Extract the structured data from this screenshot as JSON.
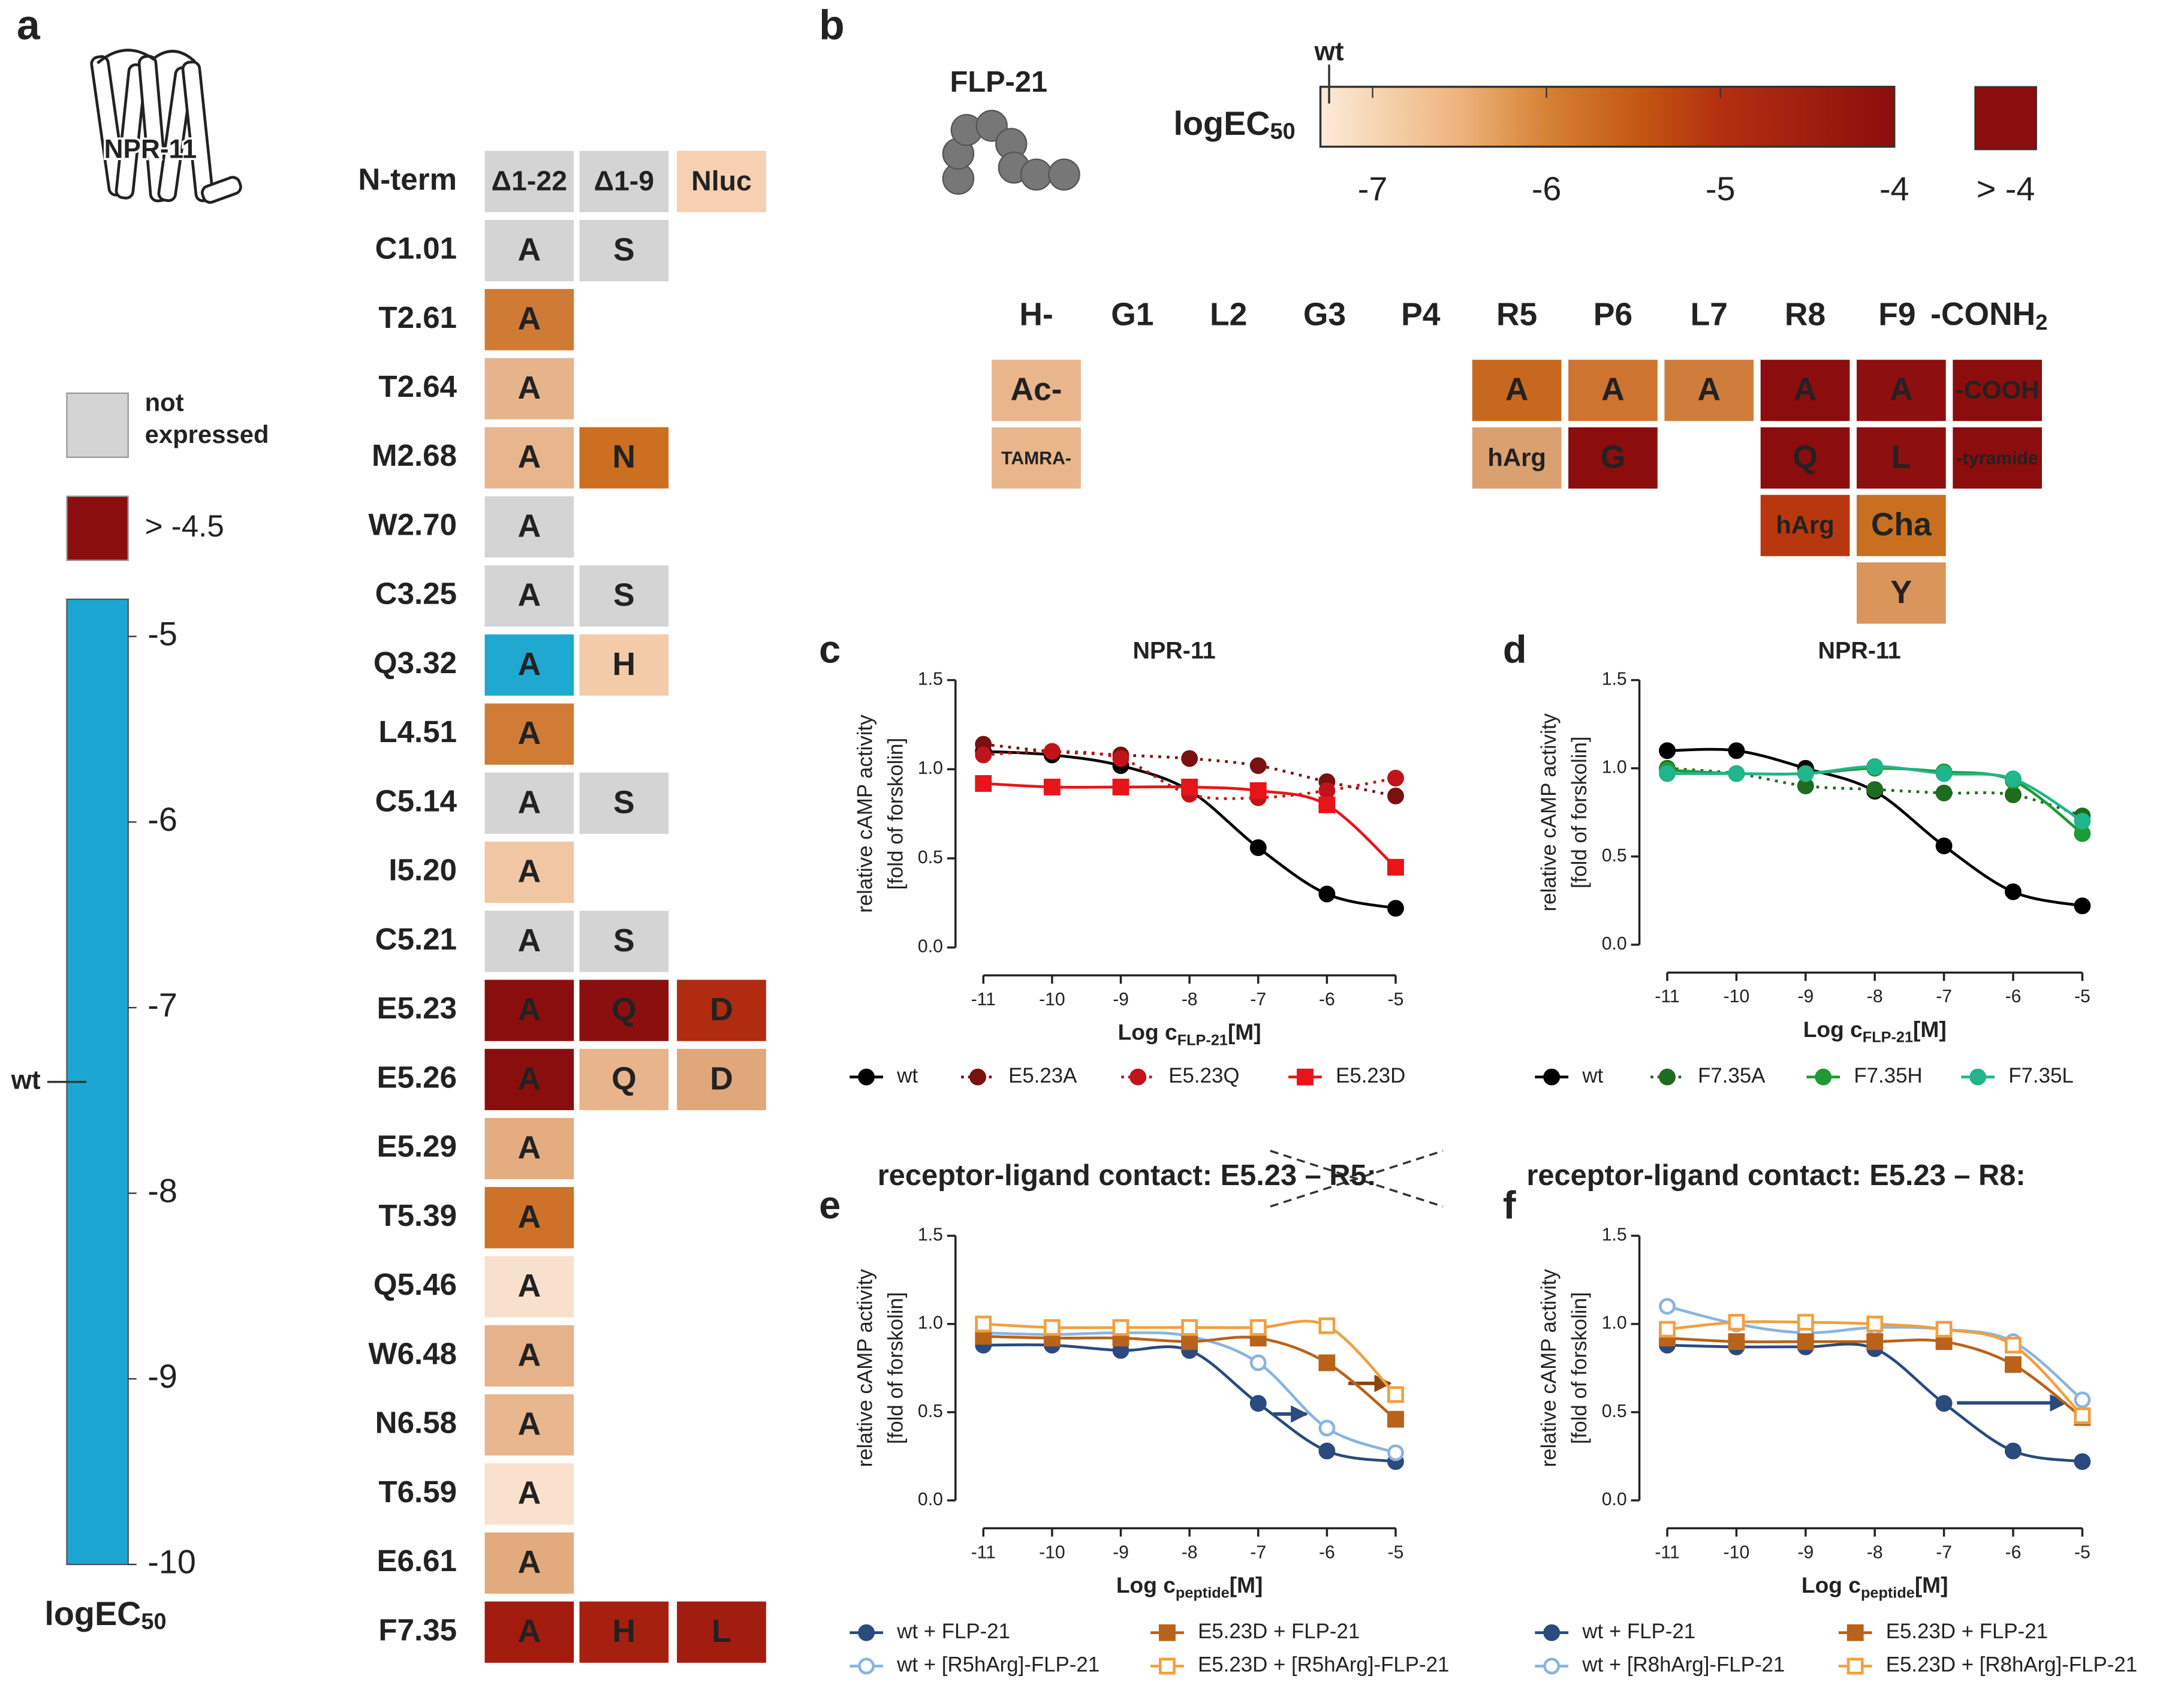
{
  "panel_a": {
    "label": "a",
    "receptor": "NPR-11",
    "rows": [
      {
        "name": "N-term",
        "cells": [
          {
            "text": "Δ1-22",
            "color": "#d4d4d4"
          },
          {
            "text": "Δ1-9",
            "color": "#d4d4d4"
          },
          {
            "text": "Nluc",
            "color": "#f6d0b0"
          }
        ]
      },
      {
        "name": "C1.01",
        "cells": [
          {
            "text": "A",
            "color": "#d4d4d4"
          },
          {
            "text": "S",
            "color": "#d4d4d4"
          }
        ]
      },
      {
        "name": "T2.61",
        "cells": [
          {
            "text": "A",
            "color": "#cf7b35"
          }
        ]
      },
      {
        "name": "T2.64",
        "cells": [
          {
            "text": "A",
            "color": "#e6b48a"
          }
        ]
      },
      {
        "name": "M2.68",
        "cells": [
          {
            "text": "A",
            "color": "#e8b68c"
          },
          {
            "text": "N",
            "color": "#cd6f20"
          }
        ]
      },
      {
        "name": "W2.70",
        "cells": [
          {
            "text": "A",
            "color": "#d4d4d4"
          }
        ]
      },
      {
        "name": "C3.25",
        "cells": [
          {
            "text": "A",
            "color": "#d4d4d4"
          },
          {
            "text": "S",
            "color": "#d4d4d4"
          }
        ]
      },
      {
        "name": "Q3.32",
        "cells": [
          {
            "text": "A",
            "color": "#1fa8d0"
          },
          {
            "text": "H",
            "color": "#f4cba8"
          }
        ]
      },
      {
        "name": "L4.51",
        "cells": [
          {
            "text": "A",
            "color": "#d07c35"
          }
        ]
      },
      {
        "name": "C5.14",
        "cells": [
          {
            "text": "A",
            "color": "#d4d4d4"
          },
          {
            "text": "S",
            "color": "#d4d4d4"
          }
        ]
      },
      {
        "name": "I5.20",
        "cells": [
          {
            "text": "A",
            "color": "#f0c6a3"
          }
        ]
      },
      {
        "name": "C5.21",
        "cells": [
          {
            "text": "A",
            "color": "#d4d4d4"
          },
          {
            "text": "S",
            "color": "#d4d4d4"
          }
        ]
      },
      {
        "name": "E5.23",
        "cells": [
          {
            "text": "A",
            "color": "#8b0e0e",
            "text_color": "#ffffff"
          },
          {
            "text": "Q",
            "color": "#8c0f0f",
            "text_color": "#ffffff"
          },
          {
            "text": "D",
            "color": "#b02b10",
            "text_color": "#ffffff"
          }
        ]
      },
      {
        "name": "E5.26",
        "cells": [
          {
            "text": "A",
            "color": "#8b0e0e",
            "text_color": "#ffffff"
          },
          {
            "text": "Q",
            "color": "#e8b48c"
          },
          {
            "text": "D",
            "color": "#e0a77a"
          }
        ]
      },
      {
        "name": "E5.29",
        "cells": [
          {
            "text": "A",
            "color": "#e3ad80"
          }
        ]
      },
      {
        "name": "T5.39",
        "cells": [
          {
            "text": "A",
            "color": "#cd7228"
          }
        ]
      },
      {
        "name": "Q5.46",
        "cells": [
          {
            "text": "A",
            "color": "#f8e1cc"
          }
        ]
      },
      {
        "name": "W6.48",
        "cells": [
          {
            "text": "A",
            "color": "#e6b289"
          }
        ]
      },
      {
        "name": "N6.58",
        "cells": [
          {
            "text": "A",
            "color": "#e8b78e"
          }
        ]
      },
      {
        "name": "T6.59",
        "cells": [
          {
            "text": "A",
            "color": "#f9e2cd"
          }
        ]
      },
      {
        "name": "E6.61",
        "cells": [
          {
            "text": "A",
            "color": "#e2ab7e"
          }
        ]
      },
      {
        "name": "F7.35",
        "cells": [
          {
            "text": "A",
            "color": "#a31b0f",
            "text_color": "#ffffff"
          },
          {
            "text": "H",
            "color": "#a7200f",
            "text_color": "#ffffff"
          },
          {
            "text": "L",
            "color": "#a31c10",
            "text_color": "#ffffff"
          }
        ]
      }
    ],
    "legend": [
      {
        "lines": [
          "not",
          "expressed"
        ],
        "color": "#d4d4d4"
      },
      {
        "lines": [
          "> -4.5"
        ],
        "color": "#8b0e0e"
      }
    ],
    "colorbar": {
      "title": "logEC",
      "title_sub": "50",
      "lim": [
        -10,
        -4.8
      ],
      "ticks": [
        -5,
        -6,
        -7,
        -8,
        -9,
        -10
      ],
      "wt": {
        "label": "wt",
        "value": -7.4
      },
      "colors": [
        {
          "value": -10,
          "color": "#1ba7d2"
        },
        {
          "value": -9,
          "color": "#7ec8d8"
        },
        {
          "value": -8,
          "color": "#eef0ea"
        },
        {
          "value": -7.4,
          "color": "#f7e4d2"
        },
        {
          "value": -7,
          "color": "#ebbd93"
        },
        {
          "value": -6,
          "color": "#c8731f"
        },
        {
          "value": -5,
          "color": "#b32410"
        },
        {
          "value": -4.8,
          "color": "#a81818"
        }
      ]
    }
  },
  "panel_b": {
    "label": "b",
    "peptide": "FLP-21",
    "colorbar": {
      "title": "logEC",
      "title_sub": "50",
      "lim": [
        -7.3,
        -4
      ],
      "ticks": [
        -7,
        -6,
        -5,
        -4
      ],
      "wt": {
        "label": "wt",
        "value": -7.25
      },
      "over": {
        "label": "> -4",
        "color": "#8b0d0d"
      },
      "colors": [
        {
          "value": -7.3,
          "color": "#fcebd8"
        },
        {
          "value": -6.5,
          "color": "#edb47c"
        },
        {
          "value": -6,
          "color": "#d58235"
        },
        {
          "value": -5.5,
          "color": "#c55a14"
        },
        {
          "value": -5,
          "color": "#b33010"
        },
        {
          "value": -4,
          "color": "#8b0d0d"
        }
      ]
    },
    "headers": [
      "H-",
      "G1",
      "L2",
      "G3",
      "P4",
      "R5",
      "P6",
      "L7",
      "R8",
      "F9",
      {
        "text": "-CONH",
        "sub": "2"
      }
    ],
    "rows": [
      [
        {
          "text": "Ac-",
          "color": "#e9b68b"
        },
        null,
        null,
        null,
        null,
        {
          "text": "A",
          "color": "#c8681e"
        },
        {
          "text": "A",
          "color": "#cc7430"
        },
        {
          "text": "A",
          "color": "#cf7d3b"
        },
        {
          "text": "A",
          "color": "#8b0d0d",
          "text_color": "#ffffff"
        },
        {
          "text": "A",
          "color": "#8e0f0f",
          "text_color": "#ffffff"
        },
        {
          "text": "-COOH",
          "color": "#8b0d0d",
          "text_color": "#ffffff"
        }
      ],
      [
        {
          "text": "TAMRA-",
          "color": "#e9b68b"
        },
        null,
        null,
        null,
        null,
        {
          "text": "hArg",
          "color": "#dba070"
        },
        {
          "text": "G",
          "color": "#8b0d0d",
          "text_color": "#ffffff"
        },
        null,
        {
          "text": "Q",
          "color": "#8b0d0d",
          "text_color": "#ffffff"
        },
        {
          "text": "L",
          "color": "#8e0f0f",
          "text_color": "#ffffff"
        },
        {
          "text": "-tyramide",
          "color": "#8b0d0d",
          "text_color": "#ffffff"
        }
      ],
      [
        null,
        null,
        null,
        null,
        null,
        null,
        null,
        null,
        {
          "text": "hArg",
          "color": "#b8370f",
          "text_color": "#ffffff"
        },
        {
          "text": "Cha",
          "color": "#c8701f"
        },
        null
      ],
      [
        null,
        null,
        null,
        null,
        null,
        null,
        null,
        null,
        null,
        {
          "text": "Y",
          "color": "#d9955c"
        },
        null
      ]
    ]
  },
  "chart_data": [
    {
      "type": "line",
      "label": "c",
      "title": "NPR-11",
      "ylabel": [
        "relative cAMP activity",
        "[fold of forskolin]"
      ],
      "xlabel": "Log c",
      "xlabel_sub": "FLP-21",
      "xlabel_unit": "[M]",
      "x": [
        -11,
        -10,
        -9,
        -8,
        -7,
        -6,
        -5
      ],
      "xlim": [
        -11,
        -5
      ],
      "xticks": [
        -11,
        -10,
        -9,
        -8,
        -7,
        -6,
        -5
      ],
      "ylim": [
        0,
        1.5
      ],
      "yticks": [
        {
          "value": 0,
          "label": "0.0"
        },
        {
          "value": 0.5,
          "label": "0.5"
        },
        {
          "value": 1,
          "label": "1.0"
        },
        {
          "value": 1.5,
          "label": "1.5"
        }
      ],
      "series": [
        {
          "name": "wt",
          "color": "#000000",
          "marker": "circle",
          "dash": false,
          "values": [
            1.1,
            1.08,
            1.02,
            0.88,
            0.56,
            0.3,
            0.22
          ]
        },
        {
          "name": "E5.23A",
          "color": "#7a1010",
          "marker": "circle",
          "dash": true,
          "values": [
            1.14,
            1.1,
            1.08,
            1.06,
            1.02,
            0.93,
            0.85
          ]
        },
        {
          "name": "E5.23Q",
          "color": "#c0141a",
          "marker": "circle",
          "dash": true,
          "values": [
            1.08,
            1.1,
            1.06,
            0.86,
            0.84,
            0.88,
            0.95
          ]
        },
        {
          "name": "E5.23D",
          "color": "#e8141a",
          "marker": "square",
          "dash": false,
          "values": [
            0.92,
            0.9,
            0.9,
            0.9,
            0.88,
            0.8,
            0.45
          ]
        }
      ]
    },
    {
      "type": "line",
      "label": "d",
      "title": "NPR-11",
      "ylabel": [
        "relative cAMP activity",
        "[fold of forskolin]"
      ],
      "xlabel": "Log c",
      "xlabel_sub": "FLP-21",
      "xlabel_unit": "[M]",
      "x": [
        -11,
        -10,
        -9,
        -8,
        -7,
        -6,
        -5
      ],
      "xlim": [
        -11,
        -5
      ],
      "xticks": [
        -11,
        -10,
        -9,
        -8,
        -7,
        -6,
        -5
      ],
      "ylim": [
        0,
        1.5
      ],
      "yticks": [
        {
          "value": 0,
          "label": "0.0"
        },
        {
          "value": 0.5,
          "label": "0.5"
        },
        {
          "value": 1,
          "label": "1.0"
        },
        {
          "value": 1.5,
          "label": "1.5"
        }
      ],
      "series": [
        {
          "name": "wt",
          "color": "#000000",
          "marker": "circle",
          "dash": false,
          "values": [
            1.1,
            1.1,
            1.0,
            0.87,
            0.56,
            0.3,
            0.22
          ]
        },
        {
          "name": "F7.35A",
          "color": "#1f6b1f",
          "marker": "circle",
          "dash": true,
          "values": [
            1.0,
            0.97,
            0.9,
            0.88,
            0.86,
            0.85,
            0.73
          ]
        },
        {
          "name": "F7.35H",
          "color": "#1f9a35",
          "marker": "circle",
          "dash": false,
          "values": [
            0.99,
            0.97,
            0.97,
            1.0,
            0.98,
            0.93,
            0.63
          ]
        },
        {
          "name": "F7.35L",
          "color": "#20b58a",
          "marker": "circle",
          "dash": false,
          "values": [
            0.97,
            0.97,
            0.97,
            1.01,
            0.97,
            0.94,
            0.7
          ]
        }
      ]
    },
    {
      "type": "line",
      "label": "e",
      "title": "receptor-ligand  contact: E5.23 – R5:",
      "ylabel": [
        "relative cAMP activity",
        "[fold of forskolin]"
      ],
      "xlabel": "Log c",
      "xlabel_sub": "peptide",
      "xlabel_unit": "[M]",
      "x": [
        -11,
        -10,
        -9,
        -8,
        -7,
        -6,
        -5
      ],
      "xlim": [
        -11,
        -5
      ],
      "xticks": [
        -11,
        -10,
        -9,
        -8,
        -7,
        -6,
        -5
      ],
      "ylim": [
        0,
        1.5
      ],
      "yticks": [
        {
          "value": 0,
          "label": "0.0"
        },
        {
          "value": 0.5,
          "label": "0.5"
        },
        {
          "value": 1,
          "label": "1.0"
        },
        {
          "value": 1.5,
          "label": "1.5"
        }
      ],
      "series": [
        {
          "name": "wt + FLP-21",
          "color": "#2b4a7d",
          "marker": "circle",
          "dash": false,
          "values": [
            0.88,
            0.88,
            0.85,
            0.85,
            0.55,
            0.28,
            0.22
          ]
        },
        {
          "name": "wt + [R5hArg]-FLP-21",
          "color": "#8ab4e0",
          "marker": "circle-open",
          "dash": false,
          "values": [
            0.95,
            0.94,
            0.95,
            0.93,
            0.78,
            0.41,
            0.27
          ]
        },
        {
          "name": "E5.23D + FLP-21",
          "color": "#b8621a",
          "marker": "square",
          "dash": false,
          "values": [
            0.93,
            0.92,
            0.92,
            0.9,
            0.92,
            0.78,
            0.46
          ]
        },
        {
          "name": "E5.23D + [R5hArg]-FLP-21",
          "color": "#f0a040",
          "marker": "square-open",
          "dash": false,
          "values": [
            1.0,
            0.98,
            0.98,
            0.98,
            0.98,
            0.99,
            0.6
          ]
        }
      ]
    },
    {
      "type": "line",
      "label": "f",
      "title": "receptor-ligand  contact: E5.23 – R8:",
      "ylabel": [
        "relative cAMP activity",
        "[fold of forskolin]"
      ],
      "xlabel": "Log c",
      "xlabel_sub": "peptide",
      "xlabel_unit": "[M]",
      "x": [
        -11,
        -10,
        -9,
        -8,
        -7,
        -6,
        -5
      ],
      "xlim": [
        -11,
        -5
      ],
      "xticks": [
        -11,
        -10,
        -9,
        -8,
        -7,
        -6,
        -5
      ],
      "ylim": [
        0,
        1.5
      ],
      "yticks": [
        {
          "value": 0,
          "label": "0.0"
        },
        {
          "value": 0.5,
          "label": "0.5"
        },
        {
          "value": 1,
          "label": "1.0"
        },
        {
          "value": 1.5,
          "label": "1.5"
        }
      ],
      "series": [
        {
          "name": "wt + FLP-21",
          "color": "#2b4a7d",
          "marker": "circle",
          "dash": false,
          "values": [
            0.88,
            0.87,
            0.87,
            0.86,
            0.55,
            0.28,
            0.22
          ]
        },
        {
          "name": "wt + [R8hArg]-FLP-21",
          "color": "#8ab4e0",
          "marker": "circle-open",
          "dash": false,
          "values": [
            1.1,
            1.0,
            0.95,
            0.98,
            0.97,
            0.9,
            0.57
          ]
        },
        {
          "name": "E5.23D + FLP-21",
          "color": "#b8621a",
          "marker": "square",
          "dash": false,
          "values": [
            0.92,
            0.9,
            0.9,
            0.9,
            0.9,
            0.77,
            0.47
          ]
        },
        {
          "name": "E5.23D + [R8hArg]-FLP-21",
          "color": "#f0a040",
          "marker": "square-open",
          "dash": false,
          "values": [
            0.97,
            1.01,
            1.01,
            1.0,
            0.97,
            0.88,
            0.48
          ]
        }
      ]
    }
  ]
}
